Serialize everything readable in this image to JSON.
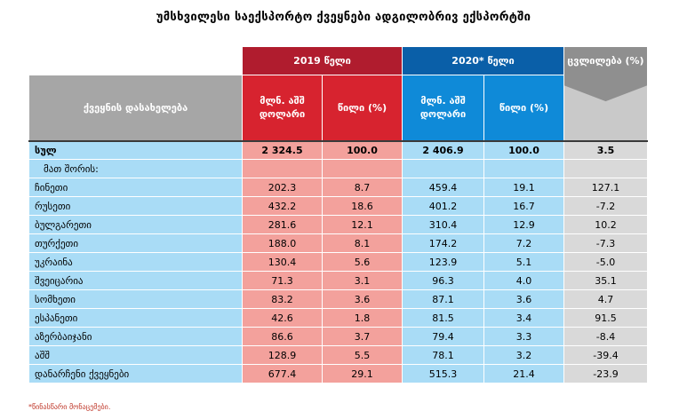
{
  "title": "უმსხვილესი საექსპორტო ქვეყნები ადგილობრივ ექსპორტში",
  "header": {
    "country": "ქვეყნის დასახელება",
    "year2019": "2019 წელი",
    "year2020": "2020* წელი",
    "change": "ცვლილება (%)",
    "mln_usd": "მლნ. აშშ დოლარი",
    "share": "წილი (%)"
  },
  "colors": {
    "red_dark": "#b01c2e",
    "red": "#d7232f",
    "blue_dark": "#0a5fa8",
    "blue": "#0f8ad8",
    "gray": "#a6a6a6"
  },
  "total": {
    "name": "სულ",
    "v2019": "2 324.5",
    "s2019": "100.0",
    "v2020": "2 406.9",
    "s2020": "100.0",
    "change": "3.5"
  },
  "of_which": "მათ შორის:",
  "rows": [
    {
      "name": "ჩინეთი",
      "v2019": "202.3",
      "s2019": "8.7",
      "v2020": "459.4",
      "s2020": "19.1",
      "change": "127.1"
    },
    {
      "name": "რუსეთი",
      "v2019": "432.2",
      "s2019": "18.6",
      "v2020": "401.2",
      "s2020": "16.7",
      "change": "-7.2"
    },
    {
      "name": "ბულგარეთი",
      "v2019": "281.6",
      "s2019": "12.1",
      "v2020": "310.4",
      "s2020": "12.9",
      "change": "10.2"
    },
    {
      "name": "თურქეთი",
      "v2019": "188.0",
      "s2019": "8.1",
      "v2020": "174.2",
      "s2020": "7.2",
      "change": "-7.3"
    },
    {
      "name": "უკრაინა",
      "v2019": "130.4",
      "s2019": "5.6",
      "v2020": "123.9",
      "s2020": "5.1",
      "change": "-5.0"
    },
    {
      "name": "შვეიცარია",
      "v2019": "71.3",
      "s2019": "3.1",
      "v2020": "96.3",
      "s2020": "4.0",
      "change": "35.1"
    },
    {
      "name": "სომხეთი",
      "v2019": "83.2",
      "s2019": "3.6",
      "v2020": "87.1",
      "s2020": "3.6",
      "change": "4.7"
    },
    {
      "name": "ესპანეთი",
      "v2019": "42.6",
      "s2019": "1.8",
      "v2020": "81.5",
      "s2020": "3.4",
      "change": "91.5"
    },
    {
      "name": "აზერბაიჯანი",
      "v2019": "86.6",
      "s2019": "3.7",
      "v2020": "79.4",
      "s2020": "3.3",
      "change": "-8.4"
    },
    {
      "name": "აშშ",
      "v2019": "128.9",
      "s2019": "5.5",
      "v2020": "78.1",
      "s2020": "3.2",
      "change": "-39.4"
    },
    {
      "name": "დანარჩენი ქვეყნები",
      "v2019": "677.4",
      "s2019": "29.1",
      "v2020": "515.3",
      "s2020": "21.4",
      "change": "-23.9"
    }
  ],
  "footnote": "*წინასწარი მონაცემები."
}
